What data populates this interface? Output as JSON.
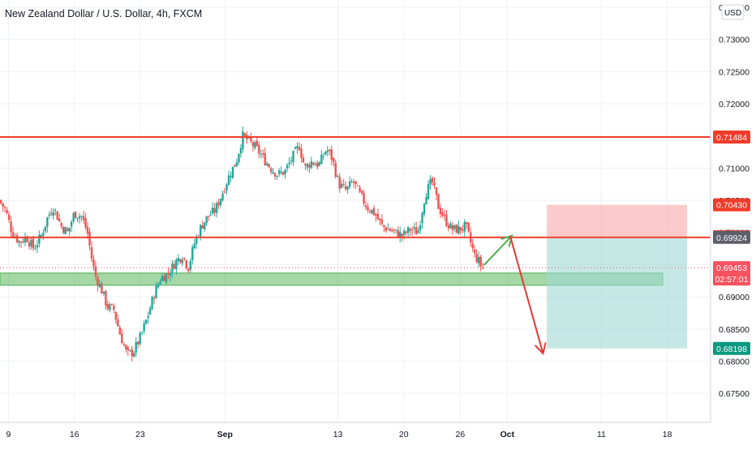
{
  "chart_data": {
    "type": "candlestick",
    "title": "New Zealand Dollar / U.S. Dollar, 4h, FXCM",
    "currency": "USD",
    "ylim": [
      0.6725,
      0.7355
    ],
    "y_ticks": [
      "0.73500",
      "0.73000",
      "0.72500",
      "0.72000",
      "0.71500",
      "0.71000",
      "0.70500",
      "0.70000",
      "0.69500",
      "0.69000",
      "0.68500",
      "0.68000",
      "0.67500"
    ],
    "x_ticks": [
      {
        "label": "9",
        "day": 9,
        "bold": false
      },
      {
        "label": "16",
        "day": 16,
        "bold": false
      },
      {
        "label": "23",
        "day": 23,
        "bold": false
      },
      {
        "label": "Sep",
        "day": 32,
        "bold": true
      },
      {
        "label": "13",
        "day": 44,
        "bold": false
      },
      {
        "label": "20",
        "day": 51,
        "bold": false
      },
      {
        "label": "26",
        "day": 57,
        "bold": false
      },
      {
        "label": "Oct",
        "day": 62,
        "bold": true
      },
      {
        "label": "11",
        "day": 72,
        "bold": false
      },
      {
        "label": "18",
        "day": 79,
        "bold": false
      }
    ],
    "x_domain_days": [
      8.1,
      83.6
    ],
    "path": [
      [
        8.1,
        0.705
      ],
      [
        8.8,
        0.7035
      ],
      [
        9.5,
        0.7
      ],
      [
        10.3,
        0.6985
      ],
      [
        11.0,
        0.6993
      ],
      [
        11.8,
        0.6975
      ],
      [
        12.6,
        0.6995
      ],
      [
        13.3,
        0.7025
      ],
      [
        13.9,
        0.704
      ],
      [
        14.7,
        0.701
      ],
      [
        15.4,
        0.7
      ],
      [
        16.1,
        0.703
      ],
      [
        16.9,
        0.7025
      ],
      [
        17.5,
        0.7
      ],
      [
        18.0,
        0.6955
      ],
      [
        18.4,
        0.693
      ],
      [
        18.9,
        0.6915
      ],
      [
        19.6,
        0.6885
      ],
      [
        20.3,
        0.688
      ],
      [
        20.9,
        0.6845
      ],
      [
        21.7,
        0.681
      ],
      [
        22.4,
        0.6815
      ],
      [
        23.2,
        0.684
      ],
      [
        23.9,
        0.687
      ],
      [
        24.6,
        0.6905
      ],
      [
        25.3,
        0.693
      ],
      [
        26.0,
        0.6935
      ],
      [
        26.9,
        0.6955
      ],
      [
        27.6,
        0.6965
      ],
      [
        28.2,
        0.6945
      ],
      [
        28.9,
        0.6985
      ],
      [
        29.6,
        0.701
      ],
      [
        30.3,
        0.7025
      ],
      [
        31.1,
        0.7035
      ],
      [
        31.8,
        0.706
      ],
      [
        32.6,
        0.709
      ],
      [
        33.3,
        0.711
      ],
      [
        34.0,
        0.715
      ],
      [
        34.8,
        0.714
      ],
      [
        35.5,
        0.713
      ],
      [
        36.2,
        0.7115
      ],
      [
        37.0,
        0.71
      ],
      [
        37.7,
        0.709
      ],
      [
        38.5,
        0.7095
      ],
      [
        39.2,
        0.7115
      ],
      [
        40.0,
        0.7135
      ],
      [
        40.6,
        0.71
      ],
      [
        41.3,
        0.711
      ],
      [
        42.1,
        0.7105
      ],
      [
        42.9,
        0.713
      ],
      [
        43.5,
        0.7115
      ],
      [
        44.2,
        0.7075
      ],
      [
        45.0,
        0.7065
      ],
      [
        45.7,
        0.708
      ],
      [
        46.4,
        0.706
      ],
      [
        47.2,
        0.704
      ],
      [
        48.0,
        0.703
      ],
      [
        48.8,
        0.701
      ],
      [
        49.5,
        0.7005
      ],
      [
        50.2,
        0.7
      ],
      [
        51.0,
        0.6995
      ],
      [
        51.8,
        0.7005
      ],
      [
        52.6,
        0.7
      ],
      [
        53.4,
        0.706
      ],
      [
        54.1,
        0.708
      ],
      [
        54.8,
        0.704
      ],
      [
        55.5,
        0.702
      ],
      [
        56.2,
        0.7005
      ],
      [
        57.0,
        0.7005
      ],
      [
        57.7,
        0.701
      ],
      [
        58.2,
        0.6985
      ],
      [
        58.6,
        0.6965
      ],
      [
        59.1,
        0.6955
      ],
      [
        59.4,
        0.6945
      ]
    ],
    "horizontal_levels": [
      {
        "name": "resistance",
        "value": 0.71484,
        "color": "#f23c2a"
      },
      {
        "name": "current",
        "value": 0.69924,
        "color": "#f23c2a"
      }
    ],
    "support_zone": {
      "from": 0.6918,
      "to": 0.6937,
      "color": "#4caf50"
    },
    "position": {
      "type": "short",
      "start_day": 66.2,
      "end_day": 81.1,
      "stop": 0.7043,
      "entry": 0.69935,
      "target": 0.68198,
      "loss_color": "#f7a9a7",
      "profit_color": "#9fd8d3"
    },
    "arrows": [
      {
        "name": "green-arrow",
        "from": [
          59.5,
          0.6949
        ],
        "to": [
          62.5,
          0.6995
        ],
        "color": "#4caf50"
      },
      {
        "name": "red-arrow",
        "from": [
          62.3,
          0.6995
        ],
        "to": [
          65.8,
          0.6812
        ],
        "color": "#e53935"
      }
    ],
    "price_labels": [
      {
        "value": 0.71484,
        "text": "0.71484",
        "color": "#f23c2a"
      },
      {
        "value": 0.7043,
        "text": "0.70430",
        "color": "#f23c2a"
      },
      {
        "value": 0.69935,
        "text": "0.69935",
        "color": "#f23c2a"
      },
      {
        "value": 0.69924,
        "text": "0.69924",
        "color": "#5d606b"
      },
      {
        "value": 0.69453,
        "text": "0.69453",
        "sub": "02:57:01",
        "color": "#f7525f"
      },
      {
        "value": 0.68198,
        "text": "0.68198",
        "color": "#089981"
      }
    ],
    "last_price": 0.69453,
    "colors": {
      "up": "#26a69a",
      "down": "#ef5350",
      "grid": "#eef1f5",
      "axis_text": "#131722"
    }
  }
}
